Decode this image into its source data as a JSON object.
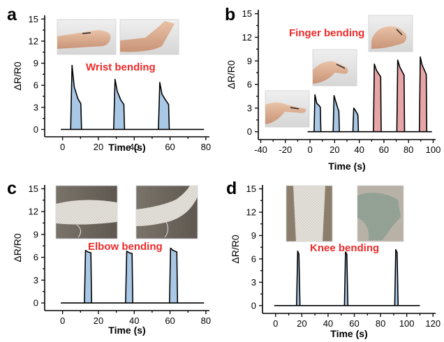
{
  "colors": {
    "blue_fill": "#a9c8e6",
    "pink_fill": "#e8a5a8",
    "annotation_red": "#ee2a2a",
    "line": "#000000"
  },
  "chart_data": [
    {
      "panel": "a",
      "type": "area",
      "annotation": "Wrist bending",
      "xlabel": "Time (s)",
      "ylabel": "ΔR/R0",
      "xlim": [
        -10,
        82
      ],
      "ylim": [
        -1,
        15.5
      ],
      "x_ticks": [
        0,
        20,
        40,
        60,
        80
      ],
      "y_ticks": [
        0,
        3,
        6,
        9,
        12,
        15
      ],
      "series": [
        {
          "fill": "blue",
          "x": [
            4.5,
            5.3,
            6.5,
            8.5,
            10.2,
            10.6
          ],
          "values": [
            0,
            8.7,
            5.8,
            4.2,
            3.5,
            0
          ]
        },
        {
          "fill": "blue",
          "x": [
            28.5,
            29.3,
            30.5,
            32.5,
            34.2,
            34.6
          ],
          "values": [
            0,
            6.8,
            5.2,
            4.0,
            3.4,
            0
          ]
        },
        {
          "fill": "blue",
          "x": [
            53.5,
            54.3,
            55.5,
            57.5,
            59.2,
            59.6
          ],
          "values": [
            0,
            6.4,
            4.8,
            4.0,
            3.4,
            0
          ]
        }
      ],
      "photos": [
        "wrist-straight-photo",
        "wrist-bent-photo"
      ]
    },
    {
      "panel": "b",
      "type": "area",
      "annotation": "Finger bending",
      "xlabel": "Time (s)",
      "ylabel": "ΔR/R0",
      "xlim": [
        -42,
        102
      ],
      "ylim": [
        -1,
        15.5
      ],
      "x_ticks": [
        -40,
        -20,
        0,
        20,
        40,
        60,
        80,
        100
      ],
      "y_ticks": [
        0,
        3,
        6,
        9,
        12,
        15
      ],
      "series": [
        {
          "fill": "blue",
          "x": [
            3.3,
            4.0,
            5.5,
            7.5,
            8.4,
            8.8
          ],
          "values": [
            0,
            4.7,
            3.6,
            3.3,
            3.1,
            0
          ]
        },
        {
          "fill": "blue",
          "x": [
            18.8,
            19.5,
            21.0,
            22.5,
            23.4,
            23.8
          ],
          "values": [
            0,
            4.6,
            3.8,
            3.0,
            2.6,
            0
          ]
        },
        {
          "fill": "blue",
          "x": [
            34.8,
            35.5,
            36.5,
            38.0,
            38.9,
            39.3
          ],
          "values": [
            0,
            3.0,
            2.8,
            2.4,
            2.1,
            0
          ]
        },
        {
          "fill": "pink",
          "x": [
            51.5,
            52.2,
            54.0,
            56.0,
            57.4,
            57.8
          ],
          "values": [
            0,
            8.6,
            7.8,
            7.3,
            7.0,
            0
          ]
        },
        {
          "fill": "pink",
          "x": [
            70.5,
            71.2,
            73.0,
            75.0,
            76.4,
            76.8
          ],
          "values": [
            0,
            9.1,
            8.2,
            7.6,
            7.2,
            0
          ]
        },
        {
          "fill": "pink",
          "x": [
            88.8,
            89.5,
            91.0,
            93.0,
            94.4,
            94.8
          ],
          "values": [
            0,
            9.5,
            8.5,
            7.8,
            7.3,
            0
          ]
        }
      ],
      "photos": [
        "finger-straight-photo",
        "finger-half-bent-photo",
        "finger-bent-photo"
      ]
    },
    {
      "panel": "c",
      "type": "area",
      "annotation": "Elbow bending",
      "xlabel": "Time (s)",
      "ylabel": "ΔR/R0",
      "xlim": [
        -10,
        82
      ],
      "ylim": [
        -1,
        15.5
      ],
      "x_ticks": [
        0,
        20,
        40,
        60,
        80
      ],
      "y_ticks": [
        0,
        3,
        6,
        9,
        12,
        15
      ],
      "series": [
        {
          "fill": "blue",
          "x": [
            12.2,
            12.8,
            14.2,
            15.8,
            16.2
          ],
          "values": [
            0,
            6.9,
            6.7,
            6.6,
            0
          ]
        },
        {
          "fill": "blue",
          "x": [
            35.2,
            35.8,
            37.2,
            38.8,
            39.2
          ],
          "values": [
            0,
            6.8,
            6.6,
            6.5,
            0
          ]
        },
        {
          "fill": "blue",
          "x": [
            59.7,
            60.3,
            61.7,
            63.8,
            64.2
          ],
          "values": [
            0,
            7.2,
            6.9,
            6.7,
            0
          ]
        }
      ],
      "photos": [
        "elbow-straight-photo",
        "elbow-bent-photo"
      ]
    },
    {
      "panel": "d",
      "type": "area",
      "annotation": "Knee bending",
      "xlabel": "Time (s)",
      "ylabel": "ΔR/R0",
      "xlim": [
        -10,
        122
      ],
      "ylim": [
        -1,
        15.5
      ],
      "x_ticks": [
        0,
        20,
        40,
        60,
        80,
        100,
        120
      ],
      "y_ticks": [
        0,
        3,
        6,
        9,
        12,
        15
      ],
      "series": [
        {
          "fill": "blue",
          "x": [
            16.0,
            16.8,
            17.8,
            18.6
          ],
          "values": [
            0,
            7.0,
            6.6,
            0
          ]
        },
        {
          "fill": "blue",
          "x": [
            52.5,
            53.3,
            54.3,
            55.1
          ],
          "values": [
            0,
            6.9,
            6.6,
            0
          ]
        },
        {
          "fill": "blue",
          "x": [
            90.8,
            91.6,
            92.6,
            93.4
          ],
          "values": [
            0,
            7.2,
            6.8,
            0
          ]
        }
      ],
      "photos": [
        "knee-straight-photo",
        "knee-bent-photo"
      ]
    }
  ]
}
